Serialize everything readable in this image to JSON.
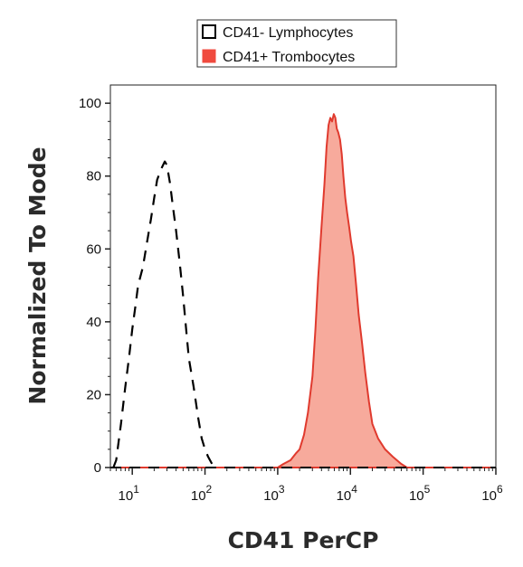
{
  "chart_data": {
    "type": "area",
    "title": "",
    "xlabel": "CD41 PerCP",
    "ylabel": "Normalized To Mode",
    "x_scale": "log",
    "xlim": [
      5,
      1000000
    ],
    "ylim": [
      0,
      105
    ],
    "x_ticks": [
      {
        "value": 10,
        "base": "10",
        "exp": "1"
      },
      {
        "value": 100,
        "base": "10",
        "exp": "2"
      },
      {
        "value": 1000,
        "base": "10",
        "exp": "3"
      },
      {
        "value": 10000,
        "base": "10",
        "exp": "4"
      },
      {
        "value": 100000,
        "base": "10",
        "exp": "5"
      },
      {
        "value": 1000000,
        "base": "10",
        "exp": "6"
      }
    ],
    "y_ticks": [
      0,
      20,
      40,
      60,
      80,
      100
    ],
    "legend": {
      "placement": "top-center",
      "entries": [
        "CD41- Lymphocytes",
        "CD41+ Trombocytes"
      ]
    },
    "series": [
      {
        "name": "CD41- Lymphocytes",
        "style": "dashed",
        "color": "#000000",
        "fill": "none",
        "points": [
          [
            5.5,
            0
          ],
          [
            6,
            2
          ],
          [
            7,
            12
          ],
          [
            8,
            22
          ],
          [
            9,
            30
          ],
          [
            10,
            38
          ],
          [
            11,
            44
          ],
          [
            12,
            50
          ],
          [
            14,
            55
          ],
          [
            16,
            62
          ],
          [
            18,
            68
          ],
          [
            20,
            74
          ],
          [
            22,
            79
          ],
          [
            25,
            82
          ],
          [
            28,
            84
          ],
          [
            30,
            83
          ],
          [
            33,
            78
          ],
          [
            36,
            72
          ],
          [
            40,
            65
          ],
          [
            45,
            56
          ],
          [
            50,
            47
          ],
          [
            55,
            38
          ],
          [
            60,
            30
          ],
          [
            70,
            22
          ],
          [
            80,
            14
          ],
          [
            90,
            8
          ],
          [
            100,
            5
          ],
          [
            110,
            3
          ],
          [
            125,
            1
          ],
          [
            140,
            0
          ]
        ]
      },
      {
        "name": "CD41+ Trombocytes",
        "style": "solid",
        "color": "#e03a2e",
        "fill": "#f7aa9c",
        "points": [
          [
            1000,
            0
          ],
          [
            1200,
            1
          ],
          [
            1500,
            2
          ],
          [
            1800,
            4
          ],
          [
            2000,
            5
          ],
          [
            2300,
            9
          ],
          [
            2600,
            15
          ],
          [
            3000,
            25
          ],
          [
            3300,
            38
          ],
          [
            3600,
            52
          ],
          [
            4000,
            66
          ],
          [
            4400,
            78
          ],
          [
            4700,
            88
          ],
          [
            5000,
            94
          ],
          [
            5300,
            96
          ],
          [
            5600,
            95
          ],
          [
            5900,
            97
          ],
          [
            6200,
            96
          ],
          [
            6500,
            93
          ],
          [
            6800,
            92
          ],
          [
            7200,
            90
          ],
          [
            7600,
            86
          ],
          [
            8000,
            80
          ],
          [
            8500,
            74
          ],
          [
            9000,
            70
          ],
          [
            9600,
            66
          ],
          [
            10200,
            62
          ],
          [
            11000,
            58
          ],
          [
            12000,
            50
          ],
          [
            13000,
            42
          ],
          [
            14500,
            34
          ],
          [
            16000,
            26
          ],
          [
            18000,
            18
          ],
          [
            20000,
            12
          ],
          [
            24000,
            8
          ],
          [
            30000,
            5
          ],
          [
            38000,
            3
          ],
          [
            50000,
            1
          ],
          [
            60000,
            0
          ]
        ]
      }
    ]
  }
}
